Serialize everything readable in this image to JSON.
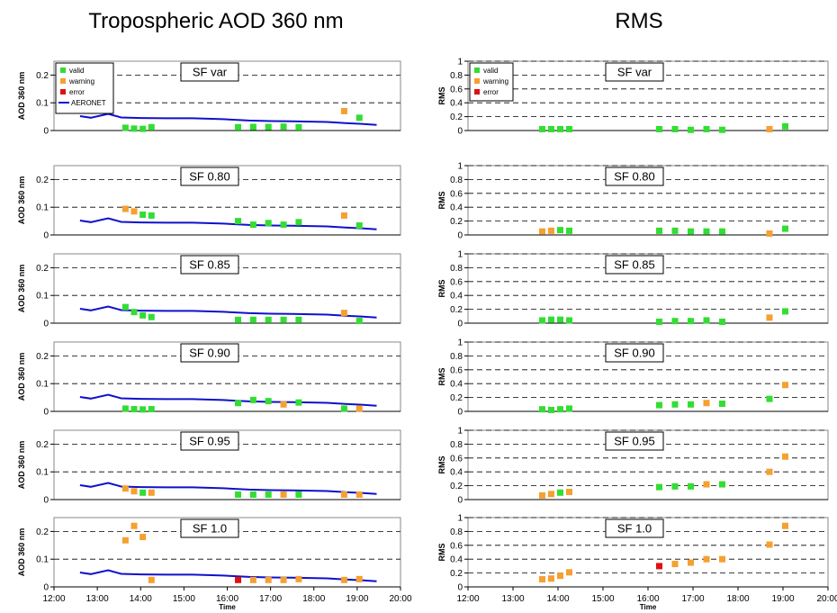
{
  "figure": {
    "left_title": "Tropospheric AOD 360 nm",
    "right_title": "RMS"
  },
  "chart_data": {
    "type": "scatter",
    "x_axis": {
      "label": "Time",
      "ticks": [
        "12:00",
        "13:00",
        "14:00",
        "15:00",
        "16:00",
        "17:00",
        "18:00",
        "19:00",
        "20:00"
      ],
      "range": [
        12.0,
        20.0
      ]
    },
    "legend": {
      "placement": "top-left of first panel in each column",
      "entries": [
        {
          "name": "valid",
          "color": "#33dd33",
          "marker": "square"
        },
        {
          "name": "warning",
          "color": "#f5a030",
          "marker": "square"
        },
        {
          "name": "error",
          "color": "#dd1111",
          "marker": "square"
        },
        {
          "name": "AERONET",
          "color": "#1010cc",
          "marker": "line"
        }
      ]
    },
    "colors": {
      "valid": "#33dd33",
      "warning": "#f5a030",
      "error": "#dd1111",
      "aeronet": "#1010cc"
    },
    "aeronet": {
      "x": [
        12.6,
        12.85,
        13.25,
        13.55,
        14.0,
        14.6,
        15.2,
        15.9,
        16.5,
        17.0,
        17.5,
        17.9,
        18.3,
        18.6,
        19.1,
        19.45
      ],
      "y": [
        0.052,
        0.046,
        0.06,
        0.047,
        0.045,
        0.044,
        0.044,
        0.041,
        0.036,
        0.034,
        0.033,
        0.032,
        0.031,
        0.028,
        0.024,
        0.02
      ]
    },
    "aod": {
      "ylabel": "AOD 360 nm",
      "yticks": [
        "0",
        "0.1",
        "0.2"
      ],
      "ylim": [
        0,
        0.25
      ],
      "panels": [
        {
          "label": "SF var",
          "points": [
            [
              13.65,
              0.01,
              "valid"
            ],
            [
              13.85,
              0.007,
              "valid"
            ],
            [
              14.05,
              0.006,
              "valid"
            ],
            [
              14.25,
              0.012,
              "valid"
            ],
            [
              16.25,
              0.012,
              "valid"
            ],
            [
              16.6,
              0.013,
              "valid"
            ],
            [
              16.95,
              0.013,
              "valid"
            ],
            [
              17.3,
              0.014,
              "valid"
            ],
            [
              17.65,
              0.012,
              "valid"
            ],
            [
              18.7,
              0.07,
              "warning"
            ],
            [
              19.05,
              0.046,
              "valid"
            ]
          ]
        },
        {
          "label": "SF 0.80",
          "points": [
            [
              13.65,
              0.094,
              "warning"
            ],
            [
              13.85,
              0.085,
              "warning"
            ],
            [
              14.05,
              0.073,
              "valid"
            ],
            [
              14.25,
              0.07,
              "valid"
            ],
            [
              16.25,
              0.05,
              "valid"
            ],
            [
              16.6,
              0.037,
              "valid"
            ],
            [
              16.95,
              0.043,
              "valid"
            ],
            [
              17.3,
              0.037,
              "valid"
            ],
            [
              17.65,
              0.046,
              "valid"
            ],
            [
              18.7,
              0.07,
              "warning"
            ],
            [
              19.05,
              0.034,
              "valid"
            ]
          ]
        },
        {
          "label": "SF 0.85",
          "points": [
            [
              13.65,
              0.058,
              "valid"
            ],
            [
              13.85,
              0.04,
              "valid"
            ],
            [
              14.05,
              0.028,
              "valid"
            ],
            [
              14.25,
              0.022,
              "valid"
            ],
            [
              16.25,
              0.012,
              "valid"
            ],
            [
              16.6,
              0.012,
              "valid"
            ],
            [
              16.95,
              0.012,
              "valid"
            ],
            [
              17.3,
              0.012,
              "valid"
            ],
            [
              17.65,
              0.012,
              "valid"
            ],
            [
              18.7,
              0.037,
              "warning"
            ],
            [
              19.05,
              0.008,
              "valid"
            ]
          ]
        },
        {
          "label": "SF 0.90",
          "points": [
            [
              13.65,
              0.01,
              "valid"
            ],
            [
              13.85,
              0.008,
              "valid"
            ],
            [
              14.05,
              0.007,
              "valid"
            ],
            [
              14.25,
              0.008,
              "valid"
            ],
            [
              16.25,
              0.03,
              "valid"
            ],
            [
              16.6,
              0.041,
              "valid"
            ],
            [
              16.95,
              0.037,
              "valid"
            ],
            [
              17.3,
              0.025,
              "warning"
            ],
            [
              17.65,
              0.032,
              "valid"
            ],
            [
              18.7,
              0.01,
              "valid"
            ],
            [
              19.05,
              0.01,
              "warning"
            ]
          ]
        },
        {
          "label": "SF 0.95",
          "points": [
            [
              13.65,
              0.04,
              "warning"
            ],
            [
              13.85,
              0.03,
              "warning"
            ],
            [
              14.05,
              0.025,
              "valid"
            ],
            [
              14.25,
              0.025,
              "warning"
            ],
            [
              16.25,
              0.018,
              "valid"
            ],
            [
              16.6,
              0.018,
              "valid"
            ],
            [
              16.95,
              0.018,
              "valid"
            ],
            [
              17.3,
              0.018,
              "warning"
            ],
            [
              17.65,
              0.018,
              "valid"
            ],
            [
              18.7,
              0.018,
              "warning"
            ],
            [
              19.05,
              0.018,
              "warning"
            ]
          ]
        },
        {
          "label": "SF 1.0",
          "points": [
            [
              13.65,
              0.168,
              "warning"
            ],
            [
              13.85,
              0.22,
              "warning"
            ],
            [
              14.05,
              0.18,
              "warning"
            ],
            [
              14.25,
              0.025,
              "warning"
            ],
            [
              16.25,
              0.025,
              "error"
            ],
            [
              16.6,
              0.025,
              "warning"
            ],
            [
              16.95,
              0.025,
              "warning"
            ],
            [
              17.3,
              0.025,
              "warning"
            ],
            [
              17.65,
              0.028,
              "warning"
            ],
            [
              18.7,
              0.025,
              "warning"
            ],
            [
              19.05,
              0.028,
              "warning"
            ]
          ]
        }
      ]
    },
    "rms": {
      "ylabel": "RMS",
      "yticks": [
        "0",
        "0.2",
        "0.4",
        "0.6",
        "0.8",
        "1"
      ],
      "ylim": [
        0,
        1
      ],
      "panels": [
        {
          "label": "SF var",
          "points": [
            [
              13.65,
              0.02,
              "valid"
            ],
            [
              13.85,
              0.02,
              "valid"
            ],
            [
              14.05,
              0.02,
              "valid"
            ],
            [
              14.25,
              0.02,
              "valid"
            ],
            [
              16.25,
              0.02,
              "valid"
            ],
            [
              16.6,
              0.02,
              "valid"
            ],
            [
              16.95,
              0.01,
              "valid"
            ],
            [
              17.3,
              0.02,
              "valid"
            ],
            [
              17.65,
              0.01,
              "valid"
            ],
            [
              18.7,
              0.02,
              "warning"
            ],
            [
              19.05,
              0.06,
              "valid"
            ]
          ]
        },
        {
          "label": "SF 0.80",
          "points": [
            [
              13.65,
              0.05,
              "warning"
            ],
            [
              13.85,
              0.06,
              "warning"
            ],
            [
              14.05,
              0.07,
              "valid"
            ],
            [
              14.25,
              0.06,
              "valid"
            ],
            [
              16.25,
              0.06,
              "valid"
            ],
            [
              16.6,
              0.06,
              "valid"
            ],
            [
              16.95,
              0.05,
              "valid"
            ],
            [
              17.3,
              0.05,
              "valid"
            ],
            [
              17.65,
              0.05,
              "valid"
            ],
            [
              18.7,
              0.02,
              "warning"
            ],
            [
              19.05,
              0.09,
              "valid"
            ]
          ]
        },
        {
          "label": "SF 0.85",
          "points": [
            [
              13.65,
              0.04,
              "valid"
            ],
            [
              13.85,
              0.05,
              "valid"
            ],
            [
              14.05,
              0.05,
              "valid"
            ],
            [
              14.25,
              0.04,
              "valid"
            ],
            [
              16.25,
              0.02,
              "valid"
            ],
            [
              16.6,
              0.03,
              "valid"
            ],
            [
              16.95,
              0.03,
              "valid"
            ],
            [
              17.3,
              0.04,
              "valid"
            ],
            [
              17.65,
              0.02,
              "valid"
            ],
            [
              18.7,
              0.08,
              "warning"
            ],
            [
              19.05,
              0.17,
              "valid"
            ]
          ]
        },
        {
          "label": "SF 0.90",
          "points": [
            [
              13.65,
              0.03,
              "valid"
            ],
            [
              13.85,
              0.02,
              "valid"
            ],
            [
              14.05,
              0.03,
              "valid"
            ],
            [
              14.25,
              0.04,
              "valid"
            ],
            [
              16.25,
              0.09,
              "valid"
            ],
            [
              16.6,
              0.1,
              "valid"
            ],
            [
              16.95,
              0.1,
              "valid"
            ],
            [
              17.3,
              0.12,
              "warning"
            ],
            [
              17.65,
              0.11,
              "valid"
            ],
            [
              18.7,
              0.18,
              "valid"
            ],
            [
              19.05,
              0.38,
              "warning"
            ]
          ]
        },
        {
          "label": "SF 0.95",
          "points": [
            [
              13.65,
              0.06,
              "warning"
            ],
            [
              13.85,
              0.08,
              "warning"
            ],
            [
              14.05,
              0.1,
              "valid"
            ],
            [
              14.25,
              0.11,
              "warning"
            ],
            [
              16.25,
              0.18,
              "valid"
            ],
            [
              16.6,
              0.19,
              "valid"
            ],
            [
              16.95,
              0.19,
              "valid"
            ],
            [
              17.3,
              0.22,
              "warning"
            ],
            [
              17.65,
              0.22,
              "valid"
            ],
            [
              18.7,
              0.4,
              "warning"
            ],
            [
              19.05,
              0.62,
              "warning"
            ]
          ]
        },
        {
          "label": "SF 1.0",
          "points": [
            [
              13.65,
              0.11,
              "warning"
            ],
            [
              13.85,
              0.12,
              "warning"
            ],
            [
              14.05,
              0.16,
              "warning"
            ],
            [
              14.25,
              0.21,
              "warning"
            ],
            [
              16.25,
              0.3,
              "error"
            ],
            [
              16.6,
              0.33,
              "warning"
            ],
            [
              16.95,
              0.35,
              "warning"
            ],
            [
              17.3,
              0.4,
              "warning"
            ],
            [
              17.65,
              0.4,
              "warning"
            ],
            [
              18.7,
              0.61,
              "warning"
            ],
            [
              19.05,
              0.88,
              "warning"
            ]
          ]
        }
      ]
    }
  }
}
